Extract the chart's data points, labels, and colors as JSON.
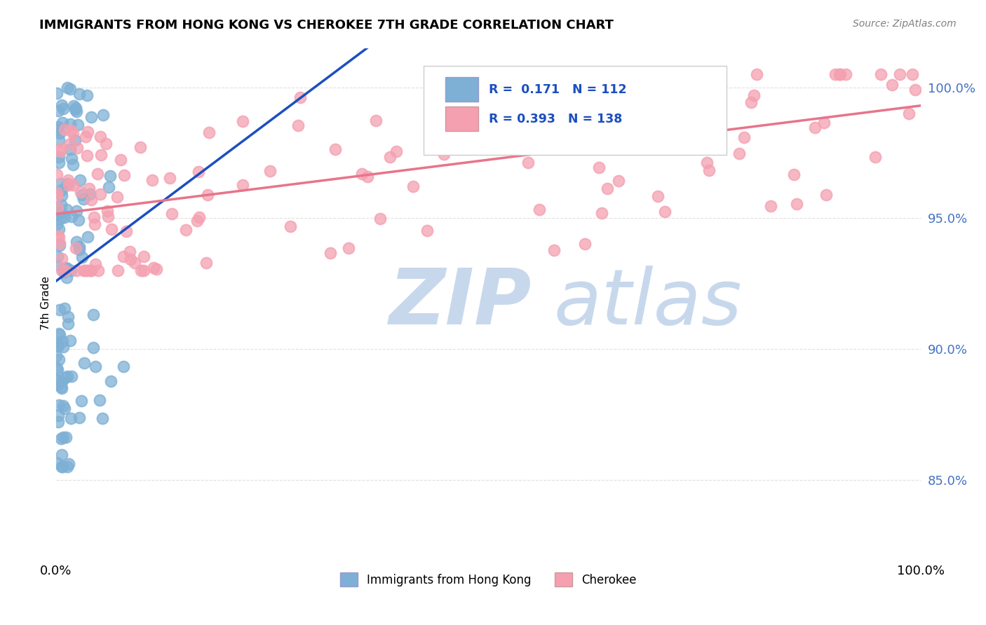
{
  "title": "IMMIGRANTS FROM HONG KONG VS CHEROKEE 7TH GRADE CORRELATION CHART",
  "source": "Source: ZipAtlas.com",
  "ylabel": "7th Grade",
  "y_ticks": [
    "85.0%",
    "90.0%",
    "95.0%",
    "100.0%"
  ],
  "y_tick_vals": [
    0.85,
    0.9,
    0.95,
    1.0
  ],
  "x_range": [
    0.0,
    1.0
  ],
  "y_range": [
    0.82,
    1.015
  ],
  "legend_r1": "R =  0.171",
  "legend_n1": "N = 112",
  "legend_r2": "R = 0.393",
  "legend_n2": "N = 138",
  "color_blue": "#7EB0D5",
  "color_pink": "#F4A0B0",
  "line_blue": "#1B4FBF",
  "line_pink": "#E8748A",
  "watermark_zip": "ZIP",
  "watermark_atlas": "atlas",
  "watermark_color_zip": "#C8D8EC",
  "watermark_color_atlas": "#C8D8EC",
  "background_color": "#FFFFFF",
  "grid_color": "#E0E0E0",
  "right_tick_color": "#4472C4",
  "seed": 42,
  "n_blue": 112,
  "n_pink": 138,
  "r_blue": 0.171,
  "r_pink": 0.393
}
